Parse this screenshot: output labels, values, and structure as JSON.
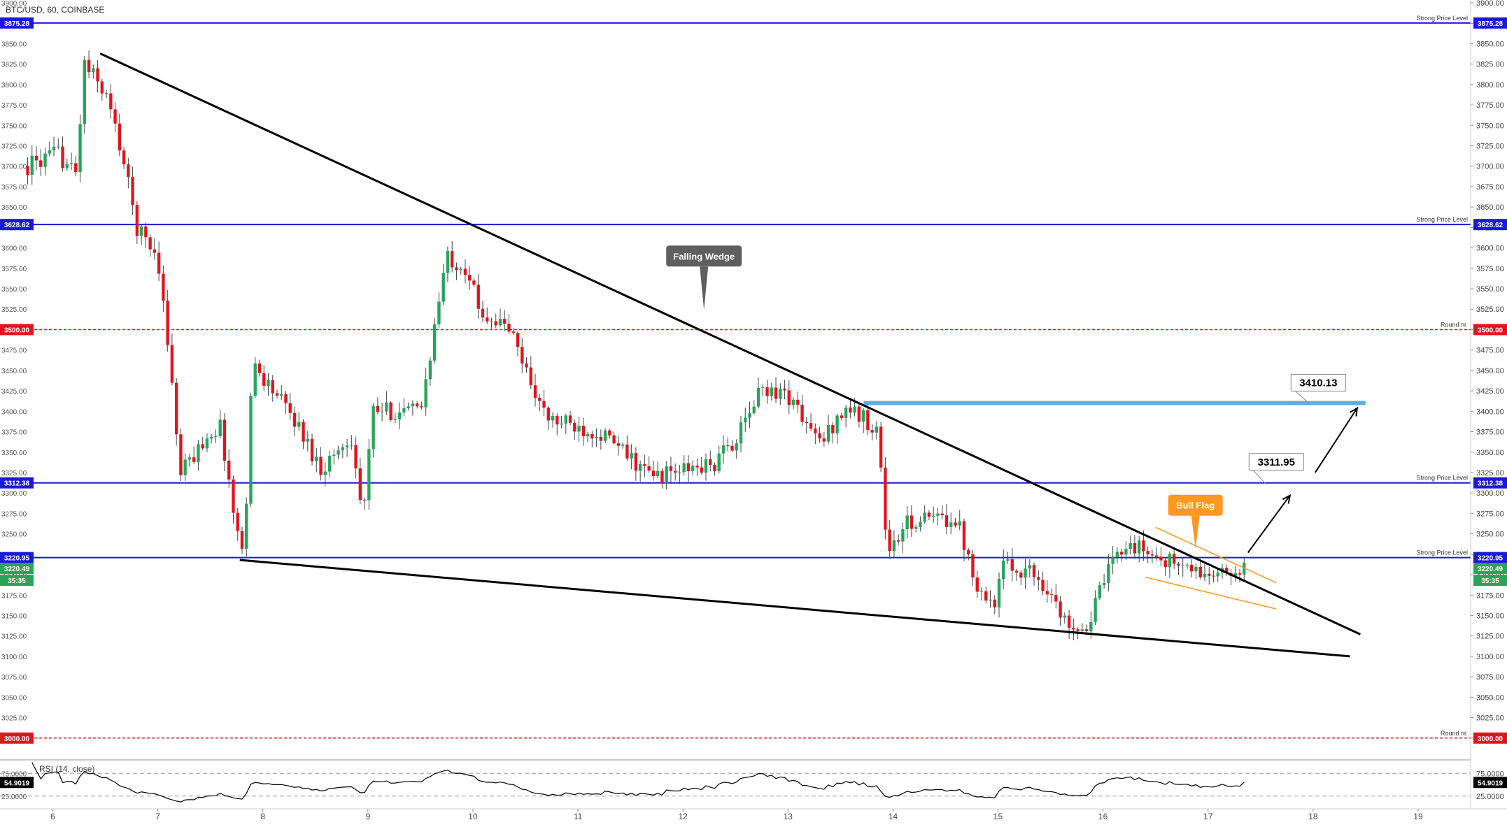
{
  "symbol_title": "BTC/USD, 60, COINBASE",
  "colors": {
    "up": "#26a65b",
    "down": "#e2141b",
    "strong_level": "#1a1ad6",
    "round_level": "#e2141b",
    "target_line": "#5aaee8",
    "wedge": "#000000",
    "flag": "#ff9820",
    "label_dark": "#5f5f5f",
    "current_price": "#26a65b"
  },
  "chart_data": [
    {
      "type": "candlestick",
      "title": "BTC/USD, 60, COINBASE",
      "x_ticks": [
        "6",
        "7",
        "8",
        "9",
        "10",
        "11",
        "12",
        "13",
        "14",
        "15",
        "16",
        "17",
        "18",
        "19"
      ],
      "xlim": [
        5.75,
        19.5
      ],
      "ylim": [
        2975,
        3900
      ],
      "y_ticks": [
        "3900.00",
        "3875.00",
        "3850.00",
        "3825.00",
        "3800.00",
        "3775.00",
        "3750.00",
        "3725.00",
        "3700.00",
        "3675.00",
        "3650.00",
        "3625.00",
        "3600.00",
        "3575.00",
        "3550.00",
        "3525.00",
        "3500.00",
        "3475.00",
        "3450.00",
        "3425.00",
        "3400.00",
        "3375.00",
        "3350.00",
        "3325.00",
        "3300.00",
        "3275.00",
        "3250.00",
        "3225.00",
        "3200.00",
        "3175.00",
        "3150.00",
        "3125.00",
        "3100.00",
        "3075.00",
        "3050.00",
        "3025.00",
        "3000.00"
      ],
      "price_anchors": [
        {
          "x": 5.75,
          "c": 3700
        },
        {
          "x": 6.05,
          "c": 3715
        },
        {
          "x": 6.22,
          "c": 3690
        },
        {
          "x": 6.3,
          "c": 3825
        },
        {
          "x": 6.5,
          "c": 3790
        },
        {
          "x": 6.65,
          "c": 3720
        },
        {
          "x": 6.8,
          "c": 3625
        },
        {
          "x": 7.0,
          "c": 3590
        },
        {
          "x": 7.15,
          "c": 3420
        },
        {
          "x": 7.2,
          "c": 3320
        },
        {
          "x": 7.5,
          "c": 3375
        },
        {
          "x": 7.6,
          "c": 3380
        },
        {
          "x": 7.75,
          "c": 3250
        },
        {
          "x": 7.82,
          "c": 3230
        },
        {
          "x": 7.9,
          "c": 3460
        },
        {
          "x": 8.3,
          "c": 3390
        },
        {
          "x": 8.55,
          "c": 3330
        },
        {
          "x": 8.85,
          "c": 3370
        },
        {
          "x": 8.95,
          "c": 3265
        },
        {
          "x": 9.05,
          "c": 3400
        },
        {
          "x": 9.5,
          "c": 3400
        },
        {
          "x": 9.75,
          "c": 3590
        },
        {
          "x": 9.95,
          "c": 3575
        },
        {
          "x": 10.05,
          "c": 3525
        },
        {
          "x": 10.35,
          "c": 3500
        },
        {
          "x": 10.7,
          "c": 3390
        },
        {
          "x": 11.2,
          "c": 3375
        },
        {
          "x": 11.7,
          "c": 3320
        },
        {
          "x": 12.3,
          "c": 3335
        },
        {
          "x": 12.55,
          "c": 3375
        },
        {
          "x": 12.75,
          "c": 3430
        },
        {
          "x": 13.0,
          "c": 3420
        },
        {
          "x": 13.3,
          "c": 3360
        },
        {
          "x": 13.55,
          "c": 3405
        },
        {
          "x": 13.85,
          "c": 3380
        },
        {
          "x": 13.95,
          "c": 3225
        },
        {
          "x": 14.15,
          "c": 3265
        },
        {
          "x": 14.6,
          "c": 3270
        },
        {
          "x": 14.8,
          "c": 3190
        },
        {
          "x": 14.95,
          "c": 3160
        },
        {
          "x": 15.05,
          "c": 3210
        },
        {
          "x": 15.3,
          "c": 3205
        },
        {
          "x": 15.5,
          "c": 3180
        },
        {
          "x": 15.6,
          "c": 3145
        },
        {
          "x": 15.85,
          "c": 3135
        },
        {
          "x": 16.0,
          "c": 3190
        },
        {
          "x": 16.2,
          "c": 3240
        },
        {
          "x": 16.55,
          "c": 3220
        },
        {
          "x": 16.95,
          "c": 3200
        },
        {
          "x": 17.2,
          "c": 3198
        },
        {
          "x": 17.37,
          "c": 3220
        }
      ],
      "rsi": {
        "label": "RSI (14, close)",
        "last_value": "54.9019",
        "y_ticks": [
          "75.0000",
          "25.0000"
        ],
        "ylim": [
          0,
          100
        ]
      },
      "levels": [
        {
          "price": 3875.28,
          "label": "3875.28",
          "kind": "strong",
          "tag": "Strong Price Level"
        },
        {
          "price": 3628.62,
          "label": "3628.62",
          "kind": "strong",
          "tag": "Strong Price Level"
        },
        {
          "price": 3500.0,
          "label": "3500.00",
          "kind": "round",
          "tag": "Round nr."
        },
        {
          "price": 3312.38,
          "label": "3312.38",
          "kind": "strong",
          "tag": "Strong Price Level"
        },
        {
          "price": 3220.95,
          "label": "3220.95",
          "kind": "strong",
          "tag": "Strong Price Level"
        },
        {
          "price": 3000.0,
          "label": "3000.00",
          "kind": "round",
          "tag": "Round nr."
        }
      ],
      "current_price": {
        "value": "3220.49",
        "countdown": "35:35",
        "price": 3220.49
      },
      "wedge_upper": [
        {
          "x": 6.45,
          "y": 3838
        },
        {
          "x": 18.45,
          "y": 3127
        }
      ],
      "wedge_lower": [
        {
          "x": 7.78,
          "y": 3218
        },
        {
          "x": 18.35,
          "y": 3100
        }
      ],
      "flag_upper": [
        {
          "x": 16.5,
          "y": 3258
        },
        {
          "x": 17.65,
          "y": 3190
        }
      ],
      "flag_lower": [
        {
          "x": 16.4,
          "y": 3197
        },
        {
          "x": 17.65,
          "y": 3158
        }
      ],
      "target_line": {
        "x_start": 13.72,
        "x_end": 18.5,
        "price": 3410.13
      },
      "arrows": [
        {
          "from": {
            "x": 17.38,
            "y": 3227
          },
          "to": {
            "x": 17.78,
            "y": 3297
          }
        },
        {
          "from": {
            "x": 18.02,
            "y": 3325
          },
          "to": {
            "x": 18.42,
            "y": 3404
          }
        }
      ],
      "annotations": [
        {
          "text": "Falling Wedge",
          "x": 12.2,
          "y": 3590,
          "kind": "dark",
          "pointer": {
            "x": 12.2,
            "y": 3524
          }
        },
        {
          "text": "Bull Flag",
          "x": 16.88,
          "y": 3285,
          "kind": "orange",
          "pointer": {
            "x": 16.88,
            "y": 3232
          }
        },
        {
          "text": "3311.95",
          "x": 17.65,
          "y": 3338,
          "kind": "callout",
          "pointer": {
            "x": 17.55,
            "y": 3311
          }
        },
        {
          "text": "3410.13",
          "x": 18.05,
          "y": 3435,
          "kind": "callout",
          "pointer": {
            "x": 17.95,
            "y": 3411
          }
        }
      ]
    }
  ]
}
